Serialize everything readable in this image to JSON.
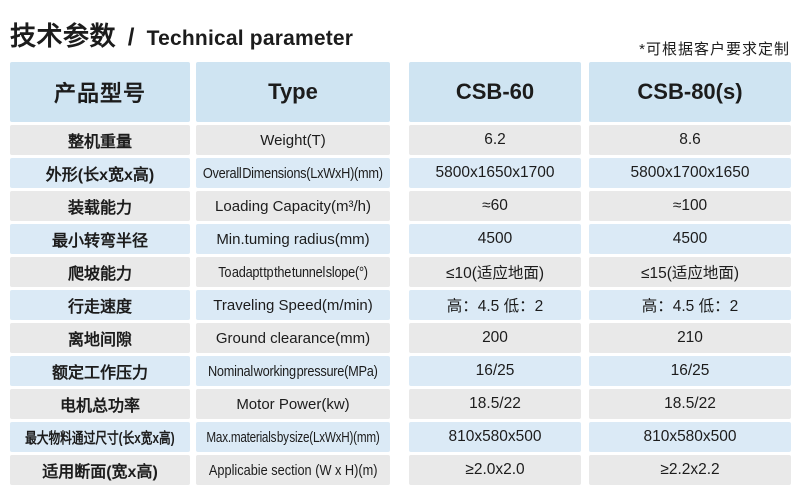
{
  "title": {
    "zh": "技术参数",
    "divider": "/",
    "en": "Technical parameter"
  },
  "note": "*可根据客户要求定制",
  "colors": {
    "header_bg": "#cfe4f2",
    "row_blue": "#dbeaf6",
    "row_gray": "#e9e9e9",
    "text": "#1c1c1c",
    "background": "#ffffff"
  },
  "table": {
    "headers": {
      "model": "产品型号",
      "type": "Type",
      "col1": "CSB-60",
      "col2": "CSB-80(s)"
    },
    "rows": [
      {
        "zh": "整机重量",
        "en": "Weight(T)",
        "csb60": "6.2",
        "csb80": "8.6"
      },
      {
        "zh": "外形(长x宽x高)",
        "en": "Overall Dimensions(LxWxH)(mm)",
        "csb60": "5800x1650x1700",
        "csb80": "5800x1700x1650"
      },
      {
        "zh": "装载能力",
        "en": "Loading Capacity(m³/h)",
        "csb60": "≈60",
        "csb80": "≈100"
      },
      {
        "zh": "最小转弯半径",
        "en": "Min.tuming radius(mm)",
        "csb60": "4500",
        "csb80": "4500"
      },
      {
        "zh": "爬坡能力",
        "en": "To adapt tp the tunnel slope(°)",
        "csb60": "≤10(适应地面)",
        "csb80": "≤15(适应地面)"
      },
      {
        "zh": "行走速度",
        "en": "Traveling Speed(m/min)",
        "csb60": "高：4.5 低：2",
        "csb80": "高：4.5 低：2"
      },
      {
        "zh": "离地间隙",
        "en": "Ground clearance(mm)",
        "csb60": "200",
        "csb80": "210"
      },
      {
        "zh": "额定工作压力",
        "en": "Nominal working pressure(MPa)",
        "csb60": "16/25",
        "csb80": "16/25"
      },
      {
        "zh": "电机总功率",
        "en": "Motor Power(kw)",
        "csb60": "18.5/22",
        "csb80": "18.5/22"
      },
      {
        "zh": "最大物料通过尺寸(长x宽x高)",
        "en": "Max.materials by size(LxWxH)(mm)",
        "csb60": "810x580x500",
        "csb80": "810x580x500"
      },
      {
        "zh": "适用断面(宽x高)",
        "en": "Applicabie section (W x H)(m)",
        "csb60": "≥2.0x2.0",
        "csb80": "≥2.2x2.2"
      }
    ]
  }
}
